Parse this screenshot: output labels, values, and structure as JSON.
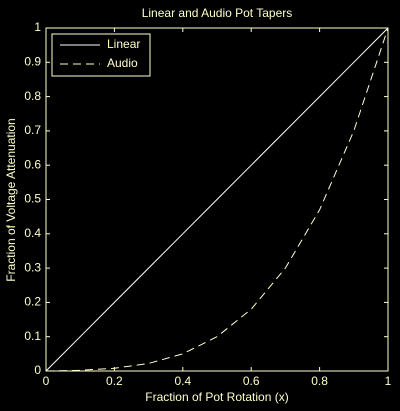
{
  "chart_data": {
    "type": "line",
    "title": "Linear and Audio Pot Tapers",
    "x_label": "Fraction of Pot Rotation (x)",
    "y_label": "Fraction of Voltage Attenuation",
    "x": [
      0,
      0.1,
      0.2,
      0.3,
      0.4,
      0.5,
      0.6,
      0.7,
      0.8,
      0.9,
      1
    ],
    "series": [
      {
        "name": "Linear",
        "color": "#ffffff",
        "style": "solid",
        "values": [
          0,
          0.1,
          0.2,
          0.3,
          0.4,
          0.5,
          0.6,
          0.7,
          0.8,
          0.9,
          1
        ]
      },
      {
        "name": "Audio",
        "color": "#ffffcc",
        "style": "dashed",
        "values": [
          0,
          0.002,
          0.008,
          0.022,
          0.05,
          0.1,
          0.18,
          0.3,
          0.47,
          0.7,
          1
        ]
      }
    ],
    "xlim": [
      0,
      1
    ],
    "xticks": [
      0,
      0.2,
      0.4,
      0.6,
      0.8,
      1
    ],
    "ylim": [
      0,
      1
    ],
    "yticks": [
      0,
      0.1,
      0.2,
      0.3,
      0.4,
      0.5,
      0.6,
      0.7,
      0.8,
      0.9,
      1
    ],
    "legend": "upper left",
    "axis_color": "#ffffcc"
  }
}
